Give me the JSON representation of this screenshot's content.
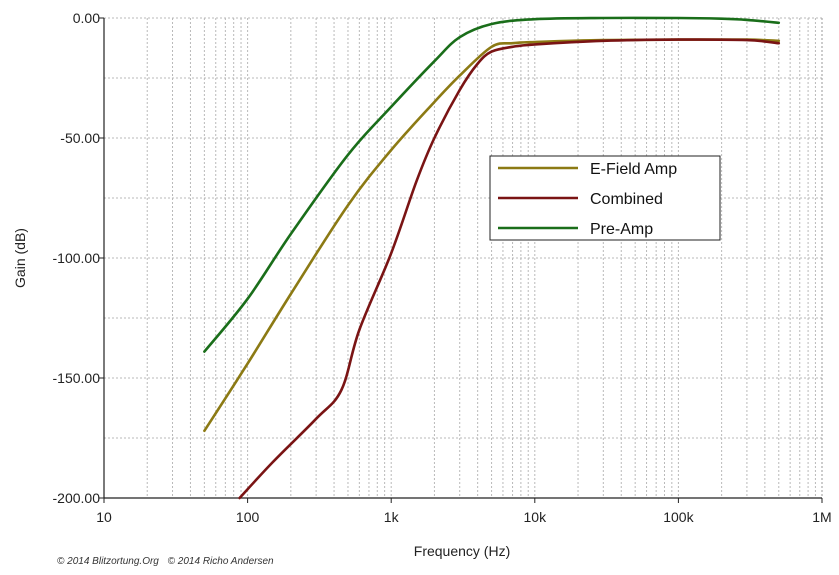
{
  "chart_data": {
    "type": "line",
    "xlabel": "Frequency (Hz)",
    "ylabel": "Gain (dB)",
    "x_scale": "log",
    "xlim": [
      10,
      1000000
    ],
    "ylim": [
      -200,
      0
    ],
    "x_ticks": [
      {
        "value": 10,
        "label": "10"
      },
      {
        "value": 100,
        "label": "100"
      },
      {
        "value": 1000,
        "label": "1k"
      },
      {
        "value": 10000,
        "label": "10k"
      },
      {
        "value": 100000,
        "label": "100k"
      },
      {
        "value": 1000000,
        "label": "1M"
      }
    ],
    "y_ticks": [
      {
        "value": 0,
        "label": "0.00"
      },
      {
        "value": -50,
        "label": "-50.00"
      },
      {
        "value": -100,
        "label": "-100.00"
      },
      {
        "value": -150,
        "label": "-150.00"
      },
      {
        "value": -200,
        "label": "-200.00"
      }
    ],
    "grid": true,
    "legend_position": "center-right",
    "series": [
      {
        "name": "E-Field Amp",
        "color": "#8c7a14",
        "points": [
          [
            50,
            -172
          ],
          [
            100,
            -144
          ],
          [
            200,
            -115
          ],
          [
            500,
            -78
          ],
          [
            1000,
            -55
          ],
          [
            2000,
            -35
          ],
          [
            3000,
            -24
          ],
          [
            5000,
            -12
          ],
          [
            7000,
            -10.5
          ],
          [
            10000,
            -10
          ],
          [
            30000,
            -9.2
          ],
          [
            100000,
            -9
          ],
          [
            300000,
            -9
          ],
          [
            500000,
            -9.5
          ]
        ]
      },
      {
        "name": "Combined",
        "color": "#7a1414",
        "points": [
          [
            88,
            -200
          ],
          [
            150,
            -185
          ],
          [
            300,
            -167
          ],
          [
            450,
            -155
          ],
          [
            600,
            -130
          ],
          [
            1000,
            -98
          ],
          [
            1500,
            -68
          ],
          [
            2000,
            -50
          ],
          [
            3000,
            -30
          ],
          [
            4000,
            -19
          ],
          [
            5000,
            -14
          ],
          [
            7000,
            -12
          ],
          [
            10000,
            -11
          ],
          [
            30000,
            -9.5
          ],
          [
            100000,
            -9
          ],
          [
            300000,
            -9.2
          ],
          [
            500000,
            -10.5
          ]
        ]
      },
      {
        "name": "Pre-Amp",
        "color": "#1a6e1a",
        "points": [
          [
            50,
            -139
          ],
          [
            100,
            -117
          ],
          [
            200,
            -90
          ],
          [
            500,
            -57
          ],
          [
            1000,
            -37
          ],
          [
            2000,
            -18
          ],
          [
            3000,
            -8
          ],
          [
            5000,
            -2.5
          ],
          [
            10000,
            -0.5
          ],
          [
            30000,
            0
          ],
          [
            100000,
            0
          ],
          [
            200000,
            -0.3
          ],
          [
            300000,
            -0.8
          ],
          [
            500000,
            -2
          ]
        ]
      }
    ]
  },
  "credits": [
    "© 2014 Blitzortung.Org",
    "© 2014 Richo Andersen"
  ]
}
